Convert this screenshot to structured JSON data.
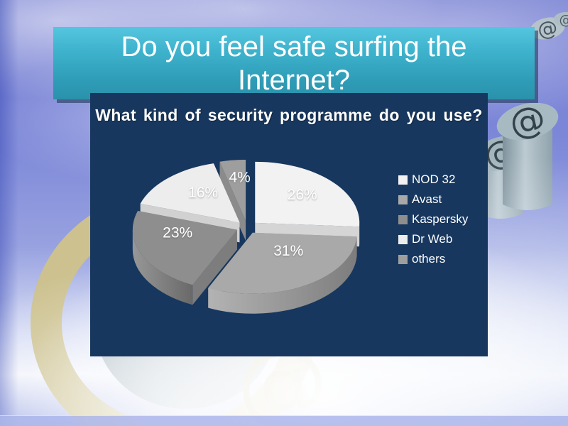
{
  "slide": {
    "title_lines": [
      "Do you feel safe surfing the",
      "Internet?"
    ]
  },
  "chart_data": {
    "type": "pie",
    "style": "3d-exploded-pie",
    "title": "What kind of security programme do you use?",
    "series": [
      {
        "label": "NOD 32",
        "value": 26,
        "display": "26%",
        "color": "#F2F2F2"
      },
      {
        "label": "Avast",
        "value": 31,
        "display": "31%",
        "color": "#A9A9A9"
      },
      {
        "label": "Kaspersky",
        "value": 23,
        "display": "23%",
        "color": "#8E8E8E"
      },
      {
        "label": "Dr Web",
        "value": 16,
        "display": "16%",
        "color": "#EDEDED"
      },
      {
        "label": "others",
        "value": 4,
        "display": "4%",
        "color": "#9E9E9E"
      }
    ],
    "start_angle_deg": 0,
    "direction": "clockwise",
    "legend_position": "right",
    "labels": "percent-inside",
    "label_color": "#FFFFFF",
    "panel_background": "#17375E"
  },
  "theme": {
    "sky_top": "#767FD2",
    "sky_light": "#98A2E0",
    "cloud_white": "#F2F4FB",
    "banner_gradient_top": "#55C5DE",
    "banner_gradient_bottom": "#2B91AB",
    "banner_shadow": "#14304F",
    "panel_navy": "#17375E",
    "gold": "#CCC18F",
    "steel_teal": "#9FB3BA",
    "text_white": "#FFFFFF"
  },
  "decorations": {
    "at_symbol_glyph": "@"
  }
}
